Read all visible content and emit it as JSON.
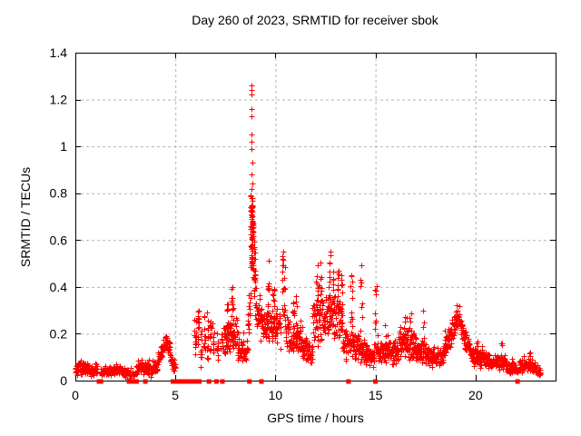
{
  "chart_data": {
    "type": "scatter",
    "title": "Day 260 of 2023, SRMTID for receiver sbok",
    "xlabel": "GPS time / hours",
    "ylabel": "SRMTID / TECUs",
    "xlim": [
      0,
      24
    ],
    "ylim": [
      0,
      1.4
    ],
    "xticks": {
      "values": [
        0,
        5,
        10,
        15,
        20
      ],
      "labels": [
        "0",
        "5",
        "10",
        "15",
        "20"
      ]
    },
    "yticks": {
      "values": [
        0,
        0.2,
        0.4,
        0.6,
        0.8,
        1,
        1.2,
        1.4
      ],
      "labels": [
        "0",
        "0.2",
        "0.4",
        "0.6",
        "0.8",
        "1",
        "1.2",
        "1.4"
      ]
    },
    "grid": "dashed, both axes",
    "legend": "none",
    "marker": "plus",
    "marker_color": "#ff0000",
    "gap_marker": "filled-square",
    "axis_color": "#000000",
    "grid_color": "#b4b4b4",
    "seed": 7,
    "bands_format": "[t_start_hr, t_end_hr, mean_start, mean_end, half_spread, optional_dt]",
    "bands": [
      [
        0.0,
        0.15,
        0.05,
        0.055,
        0.035
      ],
      [
        0.15,
        0.5,
        0.06,
        0.06,
        0.045
      ],
      [
        0.5,
        1.12,
        0.05,
        0.04,
        0.03
      ],
      [
        1.28,
        1.95,
        0.035,
        0.045,
        0.025
      ],
      [
        1.95,
        2.65,
        0.045,
        0.03,
        0.025
      ],
      [
        2.65,
        3.1,
        0.025,
        0.035,
        0.02,
        0.025
      ],
      [
        3.1,
        3.6,
        0.06,
        0.055,
        0.03
      ],
      [
        3.6,
        4.1,
        0.045,
        0.06,
        0.035
      ],
      [
        4.1,
        4.55,
        0.08,
        0.17,
        0.03
      ],
      [
        4.55,
        4.75,
        0.17,
        0.12,
        0.035
      ],
      [
        4.75,
        5.0,
        0.1,
        0.05,
        0.03
      ],
      [
        7.4,
        8.1,
        0.17,
        0.2,
        0.09
      ],
      [
        8.1,
        8.6,
        0.14,
        0.13,
        0.055
      ],
      [
        8.6,
        8.75,
        0.18,
        0.35,
        0.1
      ],
      [
        8.98,
        9.28,
        0.32,
        0.25,
        0.1
      ],
      [
        9.3,
        10.25,
        0.24,
        0.22,
        0.1
      ],
      [
        10.5,
        11.35,
        0.2,
        0.16,
        0.08
      ],
      [
        11.35,
        11.85,
        0.13,
        0.12,
        0.06
      ],
      [
        11.85,
        13.35,
        0.25,
        0.28,
        0.12
      ],
      [
        13.35,
        13.62,
        0.18,
        0.15,
        0.08
      ],
      [
        13.68,
        14.45,
        0.17,
        0.12,
        0.07
      ],
      [
        14.45,
        14.95,
        0.11,
        0.1,
        0.05
      ],
      [
        15.05,
        16.15,
        0.12,
        0.12,
        0.055
      ],
      [
        16.15,
        17.05,
        0.17,
        0.15,
        0.08
      ],
      [
        17.05,
        17.5,
        0.13,
        0.12,
        0.06
      ],
      [
        17.5,
        18.4,
        0.1,
        0.1,
        0.05
      ],
      [
        18.4,
        19.05,
        0.13,
        0.26,
        0.06
      ],
      [
        19.05,
        19.25,
        0.27,
        0.25,
        0.05
      ],
      [
        19.25,
        19.75,
        0.22,
        0.12,
        0.05
      ],
      [
        19.75,
        20.6,
        0.1,
        0.09,
        0.045
      ],
      [
        20.6,
        21.55,
        0.08,
        0.08,
        0.04
      ],
      [
        21.55,
        22.1,
        0.055,
        0.05,
        0.03
      ],
      [
        22.15,
        22.75,
        0.06,
        0.07,
        0.035
      ],
      [
        22.75,
        23.25,
        0.06,
        0.035,
        0.025
      ]
    ],
    "columns_format": "[t_hr, y_min, y_max, n_points]",
    "columns": [
      [
        6.0,
        0.08,
        0.3,
        14
      ],
      [
        6.15,
        0.12,
        0.32,
        12
      ],
      [
        6.3,
        0.05,
        0.22,
        10
      ],
      [
        6.45,
        0.1,
        0.28,
        10
      ],
      [
        6.6,
        0.08,
        0.3,
        12
      ],
      [
        6.75,
        0.1,
        0.28,
        10
      ],
      [
        6.9,
        0.12,
        0.25,
        8
      ],
      [
        7.1,
        0.08,
        0.22,
        10
      ],
      [
        7.3,
        0.1,
        0.24,
        8
      ],
      [
        7.6,
        0.1,
        0.35,
        14
      ],
      [
        7.85,
        0.15,
        0.4,
        16
      ],
      [
        8.78,
        0.45,
        0.8,
        22
      ],
      [
        8.82,
        0.5,
        0.78,
        20
      ],
      [
        8.86,
        0.55,
        0.75,
        14
      ],
      [
        8.9,
        0.42,
        0.68,
        14
      ],
      [
        8.94,
        0.4,
        0.6,
        12
      ],
      [
        8.97,
        0.35,
        0.55,
        10
      ],
      [
        9.65,
        0.25,
        0.52,
        10
      ],
      [
        9.9,
        0.2,
        0.45,
        8
      ],
      [
        10.35,
        0.3,
        0.55,
        10
      ],
      [
        10.45,
        0.25,
        0.52,
        10
      ],
      [
        10.9,
        0.15,
        0.42,
        8
      ],
      [
        11.05,
        0.15,
        0.38,
        8
      ],
      [
        12.1,
        0.3,
        0.5,
        10
      ],
      [
        12.25,
        0.3,
        0.52,
        8
      ],
      [
        12.7,
        0.3,
        0.55,
        10
      ],
      [
        12.9,
        0.32,
        0.5,
        8
      ],
      [
        13.15,
        0.25,
        0.48,
        8
      ],
      [
        13.3,
        0.2,
        0.45,
        8
      ],
      [
        13.8,
        0.2,
        0.45,
        10
      ],
      [
        14.3,
        0.2,
        0.5,
        8
      ],
      [
        15.0,
        0.1,
        0.42,
        12
      ],
      [
        15.5,
        0.1,
        0.3,
        6
      ],
      [
        16.45,
        0.15,
        0.33,
        8
      ],
      [
        16.75,
        0.12,
        0.3,
        6
      ],
      [
        17.4,
        0.15,
        0.33,
        6
      ],
      [
        20.1,
        0.08,
        0.17,
        6
      ],
      [
        21.3,
        0.08,
        0.16,
        6
      ],
      [
        22.7,
        0.06,
        0.13,
        6
      ]
    ],
    "peak_points": [
      [
        8.78,
        1.26
      ],
      [
        8.8,
        1.24
      ],
      [
        8.79,
        1.22
      ],
      [
        8.81,
        1.16
      ],
      [
        8.78,
        1.13
      ],
      [
        8.8,
        1.05
      ],
      [
        8.82,
        1.02
      ],
      [
        8.79,
        0.99
      ],
      [
        8.83,
        0.93
      ],
      [
        8.8,
        0.88
      ],
      [
        8.84,
        0.84
      ],
      [
        8.81,
        0.82
      ],
      [
        8.85,
        0.78
      ],
      [
        8.8,
        0.75
      ],
      [
        8.83,
        0.72
      ],
      [
        10.4,
        0.55
      ],
      [
        12.75,
        0.55
      ],
      [
        4.55,
        0.19
      ],
      [
        7.85,
        0.4
      ],
      [
        19.05,
        0.32
      ]
    ],
    "gap_squares_x": [
      1.18,
      1.28,
      2.68,
      2.78,
      2.88,
      2.98,
      3.06,
      3.5,
      4.88,
      4.98,
      5.08,
      5.18,
      5.28,
      5.38,
      5.48,
      5.58,
      5.68,
      5.78,
      5.88,
      5.98,
      6.06,
      6.2,
      6.68,
      7.05,
      7.35,
      8.7,
      9.3,
      13.65,
      15.0,
      22.1
    ]
  }
}
